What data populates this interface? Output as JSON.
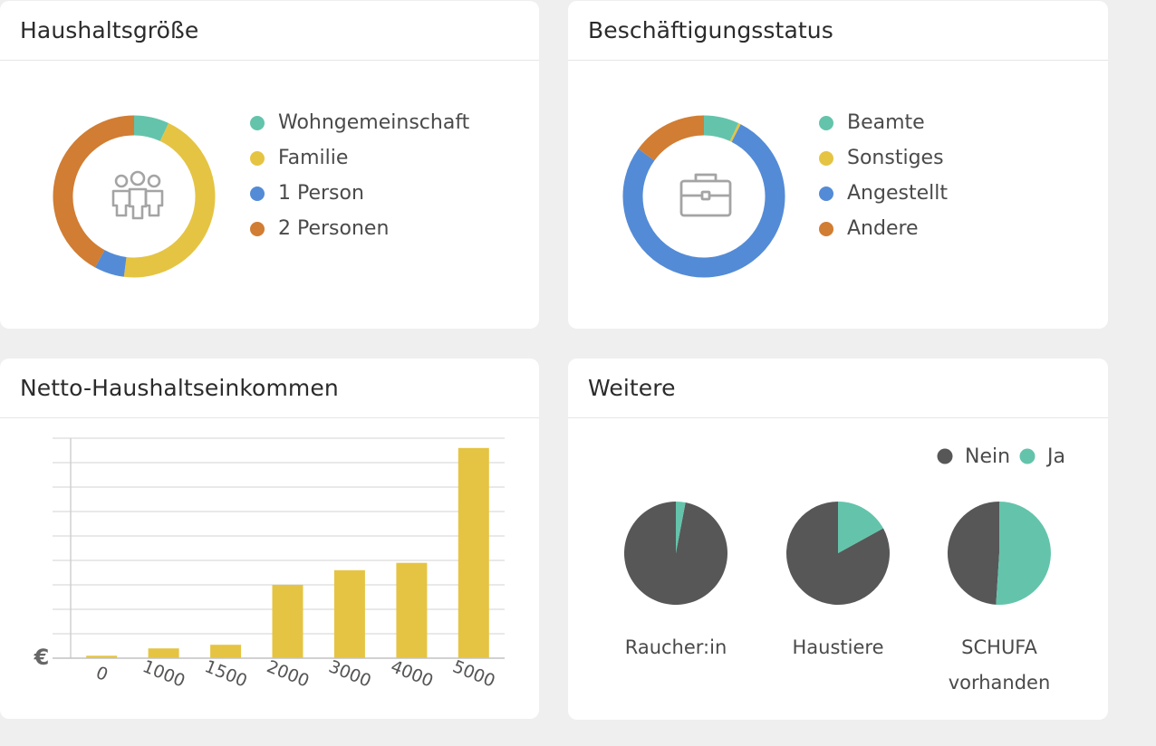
{
  "cards": {
    "household": {
      "title": "Haushaltsgröße"
    },
    "employment": {
      "title": "Beschäftigungsstatus"
    },
    "income": {
      "title": "Netto-Haushaltseinkommen"
    },
    "more": {
      "title": "Weitere"
    }
  },
  "colors": {
    "teal": "#63c4ab",
    "yellow": "#e5c443",
    "blue": "#538bd6",
    "orange": "#d17d33",
    "dark": "#575757"
  },
  "chart_data": [
    {
      "type": "pie",
      "variant": "donut",
      "title": "Haushaltsgröße",
      "center_icon": "people-group-icon",
      "categories": [
        "Wohngemeinschaft",
        "Familie",
        "1 Person",
        "2 Personen"
      ],
      "values": [
        7,
        45,
        6,
        42
      ],
      "colors": [
        "#63c4ab",
        "#e5c443",
        "#538bd6",
        "#d17d33"
      ],
      "legend": "right"
    },
    {
      "type": "pie",
      "variant": "donut",
      "title": "Beschäftigungsstatus",
      "center_icon": "briefcase-icon",
      "categories": [
        "Beamte",
        "Sonstiges",
        "Angestellt",
        "Andere"
      ],
      "values": [
        7,
        0.5,
        77.5,
        15
      ],
      "colors": [
        "#63c4ab",
        "#e5c443",
        "#538bd6",
        "#d17d33"
      ],
      "legend": "right"
    },
    {
      "type": "bar",
      "title": "Netto-Haushaltseinkommen",
      "categories": [
        "0",
        "1000",
        "1500",
        "2000",
        "3000",
        "4000",
        "5000"
      ],
      "values": [
        1,
        4,
        5.5,
        30,
        36,
        39,
        86
      ],
      "ylim": [
        0,
        90
      ],
      "ylabel": "€",
      "grid": true,
      "color": "#e5c443"
    },
    {
      "type": "pie",
      "title": "Weitere",
      "legend_position": "top-right",
      "legend": [
        "Nein",
        "Ja"
      ],
      "colors": [
        "#575757",
        "#63c4ab"
      ],
      "series": [
        {
          "name": "Raucher:in",
          "label_lines": [
            "Raucher:in"
          ],
          "values": [
            97,
            3
          ]
        },
        {
          "name": "Haustiere",
          "label_lines": [
            "Haustiere"
          ],
          "values": [
            83,
            17
          ]
        },
        {
          "name": "SCHUFA vorhanden",
          "label_lines": [
            "SCHUFA",
            "vorhanden"
          ],
          "values": [
            49,
            51
          ]
        }
      ]
    }
  ]
}
